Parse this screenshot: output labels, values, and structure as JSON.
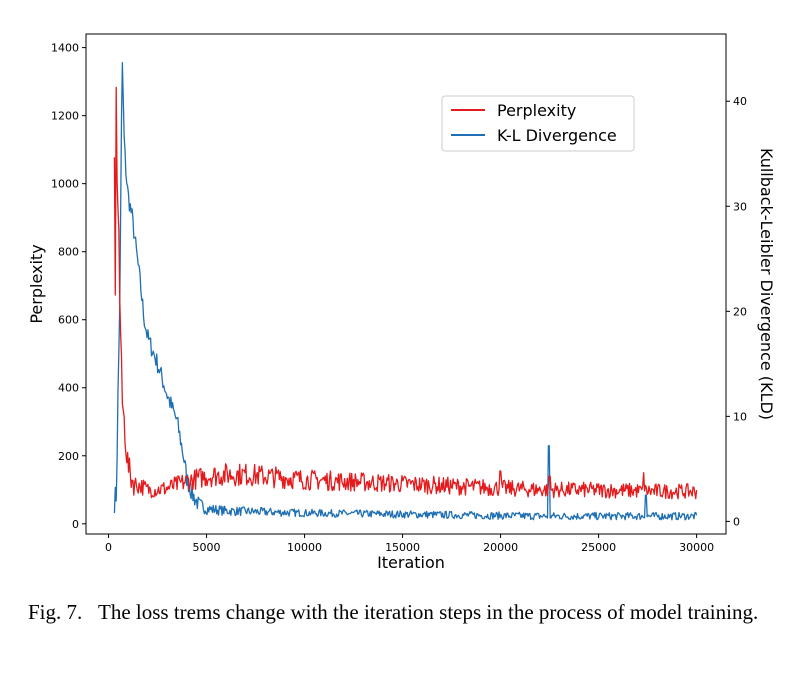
{
  "chart_data": {
    "type": "line",
    "x_label": "Iteration",
    "y_left_label": "Perplexity",
    "y_right_label": "Kullback-Leibler Divergence (KLD)",
    "x_range": [
      -1150,
      31500
    ],
    "y_left_range": [
      -30,
      1440
    ],
    "y_right_range": [
      -1.2,
      46.4
    ],
    "x_ticks": [
      0,
      5000,
      10000,
      15000,
      20000,
      25000,
      30000
    ],
    "y_left_ticks": [
      0,
      200,
      400,
      600,
      800,
      1000,
      1200,
      1400
    ],
    "y_right_ticks": [
      0,
      10,
      20,
      30,
      40
    ],
    "legend_position": "upper-right",
    "series": [
      {
        "name": "Perplexity",
        "axis": "left",
        "color": "#e41a1c",
        "points": [
          [
            300,
            1060
          ],
          [
            350,
            660
          ],
          [
            400,
            1400
          ],
          [
            450,
            880
          ],
          [
            500,
            980
          ],
          [
            550,
            720
          ],
          [
            600,
            600
          ],
          [
            650,
            480
          ],
          [
            700,
            360
          ],
          [
            800,
            300
          ],
          [
            900,
            220
          ],
          [
            1000,
            170
          ],
          [
            1100,
            145
          ],
          [
            1200,
            130
          ],
          [
            1400,
            115
          ],
          [
            1700,
            110
          ],
          [
            2000,
            100
          ],
          [
            2500,
            100
          ],
          [
            3000,
            105
          ],
          [
            3500,
            115
          ],
          [
            4000,
            125
          ],
          [
            5000,
            140
          ],
          [
            6000,
            145
          ],
          [
            7000,
            145
          ],
          [
            8000,
            140
          ],
          [
            9000,
            135
          ],
          [
            10000,
            130
          ],
          [
            12000,
            125
          ],
          [
            14000,
            120
          ],
          [
            16000,
            115
          ],
          [
            18000,
            110
          ],
          [
            20000,
            105
          ],
          [
            22000,
            100
          ],
          [
            24000,
            100
          ],
          [
            26000,
            98
          ],
          [
            28000,
            96
          ],
          [
            30000,
            95
          ]
        ],
        "noise": 28,
        "noise_start": 1300,
        "spikes": [
          [
            20000,
            155
          ],
          [
            22500,
            140
          ],
          [
            27300,
            150
          ]
        ]
      },
      {
        "name": "K-L Divergence",
        "axis": "right",
        "color": "#1f6fb4",
        "points": [
          [
            300,
            2.0
          ],
          [
            400,
            2.5
          ],
          [
            500,
            14.0
          ],
          [
            550,
            18.0
          ],
          [
            600,
            25.0
          ],
          [
            650,
            36.0
          ],
          [
            700,
            44.0
          ],
          [
            750,
            40.0
          ],
          [
            800,
            36.0
          ],
          [
            900,
            33.0
          ],
          [
            1000,
            31.0
          ],
          [
            1200,
            29.0
          ],
          [
            1400,
            26.0
          ],
          [
            1600,
            23.0
          ],
          [
            1800,
            19.5
          ],
          [
            2000,
            17.5
          ],
          [
            2500,
            15.0
          ],
          [
            3000,
            12.0
          ],
          [
            3500,
            9.5
          ],
          [
            3800,
            6.5
          ],
          [
            4000,
            4.0
          ],
          [
            4300,
            2.5
          ],
          [
            4600,
            1.6
          ],
          [
            5000,
            1.2
          ],
          [
            6000,
            1.0
          ],
          [
            8000,
            0.9
          ],
          [
            10000,
            0.8
          ],
          [
            14000,
            0.7
          ],
          [
            18000,
            0.6
          ],
          [
            22000,
            0.5
          ],
          [
            26000,
            0.5
          ],
          [
            30000,
            0.5
          ]
        ],
        "noise": 0.9,
        "noise_start": 700,
        "spikes": [
          [
            22450,
            7.2
          ],
          [
            27400,
            2.5
          ]
        ]
      }
    ]
  },
  "caption": {
    "label": "Fig. 7.",
    "text": "The loss trems change with the iteration steps in the process of model training."
  }
}
